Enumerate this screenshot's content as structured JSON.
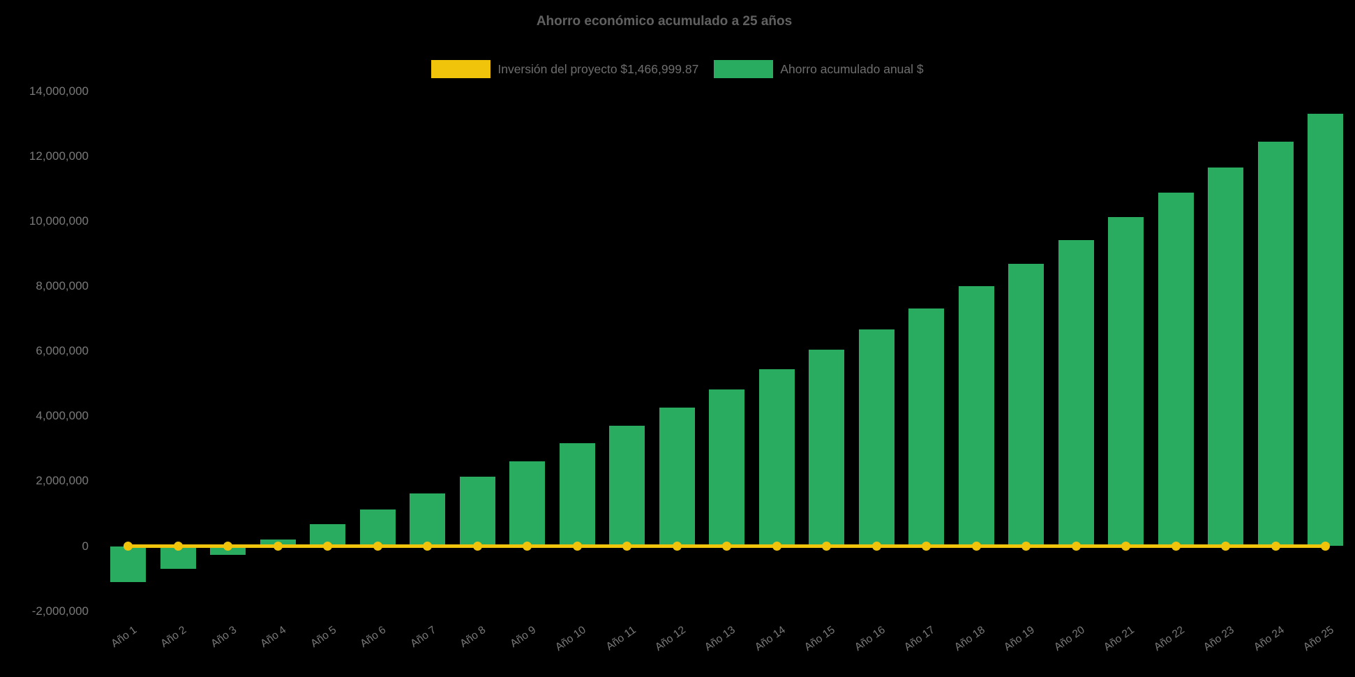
{
  "page": {
    "background": "#000000"
  },
  "chart_data": {
    "type": "bar",
    "title": "Ahorro económico acumulado a 25 años",
    "background": "#000000",
    "legend_position": "top",
    "grid": false,
    "text_colors": {
      "title": "#616161",
      "legend": "#6e6e6e",
      "axis_ticks": "#7a7a7a"
    },
    "categories": [
      "Año 1",
      "Año 2",
      "Año 3",
      "Año 4",
      "Año 5",
      "Año 6",
      "Año 7",
      "Año 8",
      "Año 9",
      "Año 10",
      "Año 11",
      "Año 12",
      "Año 13",
      "Año 14",
      "Año 15",
      "Año 16",
      "Año 17",
      "Año 18",
      "Año 19",
      "Año 20",
      "Año 21",
      "Año 22",
      "Año 23",
      "Año 24",
      "Año 25"
    ],
    "series": [
      {
        "name": "Inversión del proyecto $1,466,999.87",
        "type": "line",
        "color": "#f0c40a",
        "marker": "circle",
        "values": [
          0,
          0,
          0,
          0,
          0,
          0,
          0,
          0,
          0,
          0,
          0,
          0,
          0,
          0,
          0,
          0,
          0,
          0,
          0,
          0,
          0,
          0,
          0,
          0,
          0
        ]
      },
      {
        "name": "Ahorro acumulado anual $",
        "type": "bar",
        "color": "#29ac60",
        "values": [
          -1100000,
          -690000,
          -260000,
          210000,
          670000,
          1120000,
          1630000,
          2130000,
          2620000,
          3160000,
          3700000,
          4260000,
          4820000,
          5440000,
          6040000,
          6670000,
          7320000,
          8000000,
          8680000,
          9410000,
          10130000,
          10890000,
          11650000,
          12450000,
          13300000
        ]
      }
    ],
    "xlabel": "",
    "ylabel": "",
    "ylim": [
      -2000000,
      14000000
    ],
    "ytick_step": 2000000,
    "ytick_values": [
      14000000,
      12000000,
      10000000,
      8000000,
      6000000,
      4000000,
      2000000,
      0,
      -2000000
    ],
    "ytick_labels": [
      "14,000,000",
      "12,000,000",
      "10,000,000",
      "8,000,000",
      "6,000,000",
      "4,000,000",
      "2,000,000",
      "0",
      "-2,000,000"
    ]
  }
}
